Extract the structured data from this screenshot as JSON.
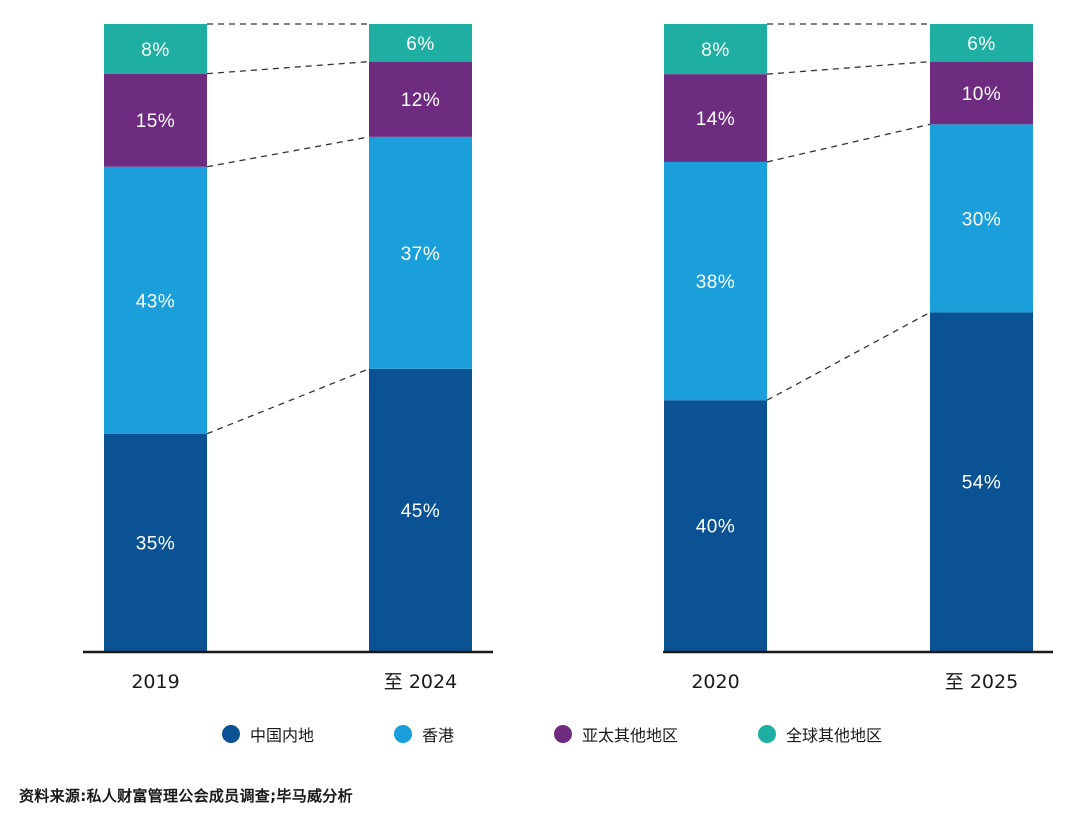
{
  "chart_data": [
    {
      "type": "bar",
      "stacked": true,
      "categories": [
        "2019",
        "至 2024"
      ],
      "series": [
        {
          "name": "中国内地",
          "color": "#0a5294",
          "values": [
            35,
            45
          ]
        },
        {
          "name": "香港",
          "color": "#1a9fdb",
          "values": [
            43,
            37
          ]
        },
        {
          "name": "亚太其他地区",
          "color": "#6e2c80",
          "values": [
            15,
            12
          ]
        },
        {
          "name": "全球其他地区",
          "color": "#1fafa2",
          "values": [
            8,
            6
          ]
        }
      ],
      "labels": [
        [
          "35%",
          "43%",
          "15%",
          "8%"
        ],
        [
          "45%",
          "37%",
          "12%",
          "6%"
        ]
      ],
      "ylim": [
        0,
        100
      ],
      "connectors": "dashed",
      "grid": false
    },
    {
      "type": "bar",
      "stacked": true,
      "categories": [
        "2020",
        "至 2025"
      ],
      "series": [
        {
          "name": "中国内地",
          "color": "#0a5294",
          "values": [
            40,
            54
          ]
        },
        {
          "name": "香港",
          "color": "#1a9fdb",
          "values": [
            38,
            30
          ]
        },
        {
          "name": "亚太其他地区",
          "color": "#6e2c80",
          "values": [
            14,
            10
          ]
        },
        {
          "name": "全球其他地区",
          "color": "#1fafa2",
          "values": [
            8,
            6
          ]
        }
      ],
      "labels": [
        [
          "40%",
          "38%",
          "14%",
          "8%"
        ],
        [
          "54%",
          "30%",
          "10%",
          "6%"
        ]
      ],
      "ylim": [
        0,
        100
      ],
      "connectors": "dashed",
      "grid": false
    }
  ],
  "legend": {
    "placement": "bottom",
    "items": [
      {
        "label": "中国内地",
        "color": "#0a5294"
      },
      {
        "label": "香港",
        "color": "#1a9fdb"
      },
      {
        "label": "亚太其他地区",
        "color": "#6e2c80"
      },
      {
        "label": "全球其他地区",
        "color": "#1fafa2"
      }
    ]
  },
  "source": "资料来源:私人财富管理公会成员调查;毕马威分析"
}
